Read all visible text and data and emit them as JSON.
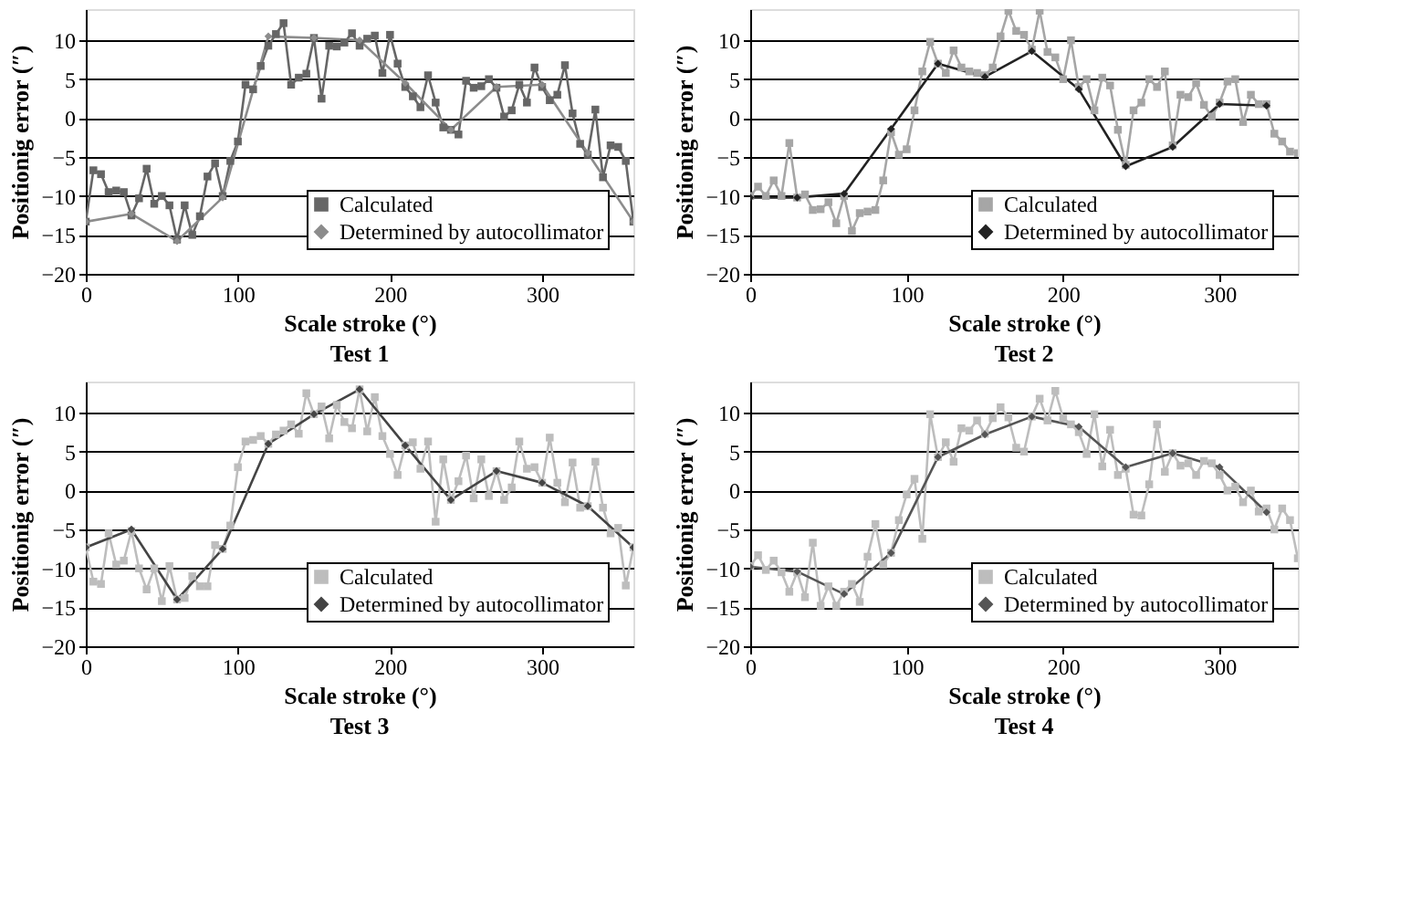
{
  "chart_data": [
    {
      "type": "line",
      "title": "Test 1",
      "xlabel": "Scale stroke (°)",
      "ylabel": "Positionig error (″)",
      "xlim": [
        0,
        360
      ],
      "xticks": [
        0,
        100,
        200,
        300
      ],
      "ylim": [
        -20,
        14
      ],
      "yticks": [
        -20,
        -15,
        -10,
        -5,
        0,
        5,
        10
      ],
      "grid": "y",
      "legend": "bottom right",
      "series": [
        {
          "name": "Calculated",
          "color": "#666666",
          "marker": "square",
          "x": [
            0,
            5,
            10,
            15,
            20,
            25,
            30,
            35,
            40,
            45,
            50,
            55,
            60,
            65,
            70,
            75,
            80,
            85,
            90,
            95,
            100,
            105,
            110,
            115,
            120,
            125,
            130,
            135,
            140,
            145,
            150,
            155,
            160,
            165,
            170,
            175,
            180,
            185,
            190,
            195,
            200,
            205,
            210,
            215,
            220,
            225,
            230,
            235,
            240,
            245,
            250,
            255,
            260,
            265,
            270,
            275,
            280,
            285,
            290,
            295,
            300,
            305,
            310,
            315,
            320,
            325,
            330,
            335,
            340,
            345,
            350,
            355,
            360
          ],
          "values": [
            -13.3,
            -6.7,
            -7.2,
            -9.5,
            -9.3,
            -9.5,
            -12.5,
            -10.3,
            -6.5,
            -11,
            -10,
            -11.2,
            -15.6,
            -11.2,
            -15,
            -12.6,
            -7.5,
            -5.8,
            -10,
            -5.5,
            -3,
            4.3,
            3.7,
            6.7,
            9.3,
            10.8,
            12.2,
            4.3,
            5.2,
            5.7,
            10.3,
            2.5,
            9.3,
            9.2,
            9.7,
            10.9,
            9.3,
            10.2,
            10.6,
            5.8,
            10.7,
            7,
            4,
            2.8,
            1.4,
            5.5,
            2,
            -1.2,
            -1.5,
            -2.1,
            4.8,
            3.9,
            4.1,
            5,
            3.9,
            0.2,
            1,
            4.3,
            2,
            6.5,
            4,
            2.3,
            3,
            6.8,
            0.6,
            -3.3,
            -4.7,
            1.1,
            -7.6,
            -3.5,
            -3.7,
            -5.5,
            -13.3
          ]
        },
        {
          "name": "Determined by autocollimator",
          "color": "#8c8c8c",
          "marker": "diamond",
          "x": [
            0,
            30,
            60,
            90,
            120,
            150,
            180,
            210,
            240,
            270,
            300,
            330,
            360
          ],
          "values": [
            -13.3,
            -12.3,
            -15.8,
            -10.2,
            10.5,
            10.3,
            10,
            4.5,
            -1.5,
            4,
            4.3,
            -4.5,
            -13.3
          ]
        }
      ]
    },
    {
      "type": "line",
      "title": "Test 2",
      "xlabel": "Scale stroke (°)",
      "ylabel": "Positionig error (″)",
      "xlim": [
        0,
        350
      ],
      "xticks": [
        0,
        100,
        200,
        300
      ],
      "ylim": [
        -20,
        14
      ],
      "yticks": [
        -20,
        -15,
        -10,
        -5,
        0,
        5,
        10
      ],
      "grid": "y",
      "legend": "bottom right",
      "series": [
        {
          "name": "Calculated",
          "color": "#a6a6a6",
          "marker": "square",
          "x": [
            0,
            5,
            10,
            15,
            20,
            25,
            30,
            35,
            40,
            45,
            50,
            55,
            60,
            65,
            70,
            75,
            80,
            85,
            90,
            95,
            100,
            105,
            110,
            115,
            120,
            125,
            130,
            135,
            140,
            145,
            150,
            155,
            160,
            165,
            170,
            175,
            180,
            185,
            190,
            195,
            200,
            205,
            210,
            215,
            220,
            225,
            230,
            235,
            240,
            245,
            250,
            255,
            260,
            265,
            270,
            275,
            280,
            285,
            290,
            295,
            300,
            305,
            310,
            315,
            320,
            325,
            330,
            335,
            340,
            345,
            350
          ],
          "values": [
            -10,
            -8.8,
            -10,
            -8,
            -10,
            -3.2,
            -10.2,
            -9.8,
            -11.8,
            -11.7,
            -10.8,
            -13.5,
            -10,
            -14.5,
            -12.2,
            -12,
            -11.8,
            -8,
            -1.8,
            -4.7,
            -4,
            1,
            6,
            9.8,
            7,
            5.8,
            8.7,
            6.5,
            6,
            5.8,
            5.5,
            6.5,
            10.5,
            13.8,
            11.2,
            10.7,
            8.8,
            13.8,
            8.5,
            7.8,
            5,
            10,
            4,
            5,
            1,
            5.2,
            4.2,
            -1.5,
            -6,
            1,
            2,
            5,
            4,
            6,
            -3.5,
            3,
            2.7,
            4.5,
            1.7,
            0.2,
            2,
            4.7,
            5,
            -0.5,
            3,
            1.8,
            1.8,
            -2,
            -3,
            -4.3,
            -4.5
          ]
        },
        {
          "name": "Determined by autocollimator",
          "color": "#222222",
          "marker": "diamond",
          "x": [
            0,
            30,
            60,
            90,
            120,
            150,
            180,
            210,
            240,
            270,
            300,
            330
          ],
          "values": [
            -10.2,
            -10.2,
            -9.7,
            -1.4,
            7,
            5.3,
            8.6,
            3.7,
            -6.2,
            -3.7,
            1.8,
            1.6
          ]
        }
      ]
    },
    {
      "type": "line",
      "title": "Test 3",
      "xlabel": "Scale stroke (°)",
      "ylabel": "Positionig error (″)",
      "xlim": [
        0,
        360
      ],
      "xticks": [
        0,
        100,
        200,
        300
      ],
      "ylim": [
        -20,
        14
      ],
      "yticks": [
        -20,
        -15,
        -10,
        -5,
        0,
        5,
        10
      ],
      "grid": "y",
      "legend": "bottom right",
      "series": [
        {
          "name": "Calculated",
          "color": "#bdbdbd",
          "marker": "square",
          "x": [
            0,
            5,
            10,
            15,
            20,
            25,
            30,
            35,
            40,
            45,
            50,
            55,
            60,
            65,
            70,
            75,
            80,
            85,
            90,
            95,
            100,
            105,
            110,
            115,
            120,
            125,
            130,
            135,
            140,
            145,
            150,
            155,
            160,
            165,
            170,
            175,
            180,
            185,
            190,
            195,
            200,
            205,
            210,
            215,
            220,
            225,
            230,
            235,
            240,
            245,
            250,
            255,
            260,
            265,
            270,
            275,
            280,
            285,
            290,
            295,
            300,
            305,
            310,
            315,
            320,
            325,
            330,
            335,
            340,
            345,
            350,
            355,
            360
          ],
          "values": [
            -7.3,
            -11.7,
            -12,
            -5.5,
            -9.5,
            -9,
            -5.2,
            -10,
            -12.7,
            -10,
            -14.2,
            -9.7,
            -14,
            -13.8,
            -11,
            -12.3,
            -12.3,
            -7,
            -7.5,
            -4.5,
            3,
            6.3,
            6.5,
            7,
            6,
            7.2,
            7.7,
            8.5,
            7.3,
            12.5,
            9.8,
            10.8,
            6.7,
            11,
            8.8,
            8,
            13,
            7.6,
            12,
            7,
            4.7,
            2,
            5.8,
            6.2,
            2.8,
            6.3,
            -4,
            4,
            -1.2,
            1.2,
            4.5,
            -1,
            4,
            -0.7,
            2.5,
            -1.2,
            0.4,
            6.3,
            2.8,
            3,
            1,
            6.8,
            1,
            -1.5,
            3.6,
            -2.2,
            -2,
            3.7,
            -2.2,
            -5.5,
            -4.8,
            -12.2,
            -7.3
          ]
        },
        {
          "name": "Determined by autocollimator",
          "color": "#444444",
          "marker": "diamond",
          "x": [
            0,
            30,
            60,
            90,
            120,
            150,
            180,
            210,
            240,
            270,
            300,
            330,
            360
          ],
          "values": [
            -7.3,
            -5,
            -14,
            -7.5,
            6,
            9.8,
            13,
            5.8,
            -1.2,
            2.5,
            1,
            -2,
            -7.3
          ]
        }
      ]
    },
    {
      "type": "line",
      "title": "Test 4",
      "xlabel": "Scale stroke (°)",
      "ylabel": "Positionig error (″)",
      "xlim": [
        0,
        350
      ],
      "xticks": [
        0,
        100,
        200,
        300
      ],
      "ylim": [
        -20,
        14
      ],
      "yticks": [
        -20,
        -15,
        -10,
        -5,
        0,
        5,
        10
      ],
      "grid": "y",
      "legend": "bottom right",
      "series": [
        {
          "name": "Calculated",
          "color": "#bdbdbd",
          "marker": "square",
          "x": [
            0,
            5,
            10,
            15,
            20,
            25,
            30,
            35,
            40,
            45,
            50,
            55,
            60,
            65,
            70,
            75,
            80,
            85,
            90,
            95,
            100,
            105,
            110,
            115,
            120,
            125,
            130,
            135,
            140,
            145,
            150,
            155,
            160,
            165,
            170,
            175,
            180,
            185,
            190,
            195,
            200,
            205,
            210,
            215,
            220,
            225,
            230,
            235,
            240,
            245,
            250,
            255,
            260,
            265,
            270,
            275,
            280,
            285,
            290,
            295,
            300,
            305,
            310,
            315,
            320,
            325,
            330,
            335,
            340,
            345,
            350
          ],
          "values": [
            -9.7,
            -8.3,
            -10.2,
            -9,
            -10.5,
            -13,
            -10.5,
            -13.7,
            -6.7,
            -14.8,
            -12.3,
            -14.8,
            -13,
            -12,
            -14.3,
            -8.5,
            -4.3,
            -9.5,
            -8,
            -3.8,
            -0.5,
            1.5,
            -6.2,
            9.8,
            4.3,
            6.2,
            3.7,
            8,
            7.7,
            9,
            7.3,
            9.3,
            10.7,
            9.4,
            5.5,
            5,
            9.5,
            11.8,
            9,
            12.8,
            9.3,
            8.5,
            7.5,
            4.7,
            9.8,
            3.1,
            7.8,
            2,
            2.8,
            -3.1,
            -3.2,
            0.8,
            8.5,
            2.4,
            4.8,
            3.2,
            3.5,
            2,
            3.8,
            3.5,
            2,
            0,
            0.5,
            -1.5,
            0,
            -2.7,
            -2.3,
            -5,
            -2.3,
            -3.8,
            -8.7
          ]
        },
        {
          "name": "Determined by autocollimator",
          "color": "#555555",
          "marker": "diamond",
          "x": [
            0,
            30,
            60,
            90,
            120,
            150,
            180,
            210,
            240,
            270,
            300,
            330
          ],
          "values": [
            -9.8,
            -10.4,
            -13.3,
            -8,
            4.3,
            7.2,
            9.5,
            8.2,
            3,
            4.8,
            3,
            -2.8
          ]
        }
      ]
    }
  ]
}
